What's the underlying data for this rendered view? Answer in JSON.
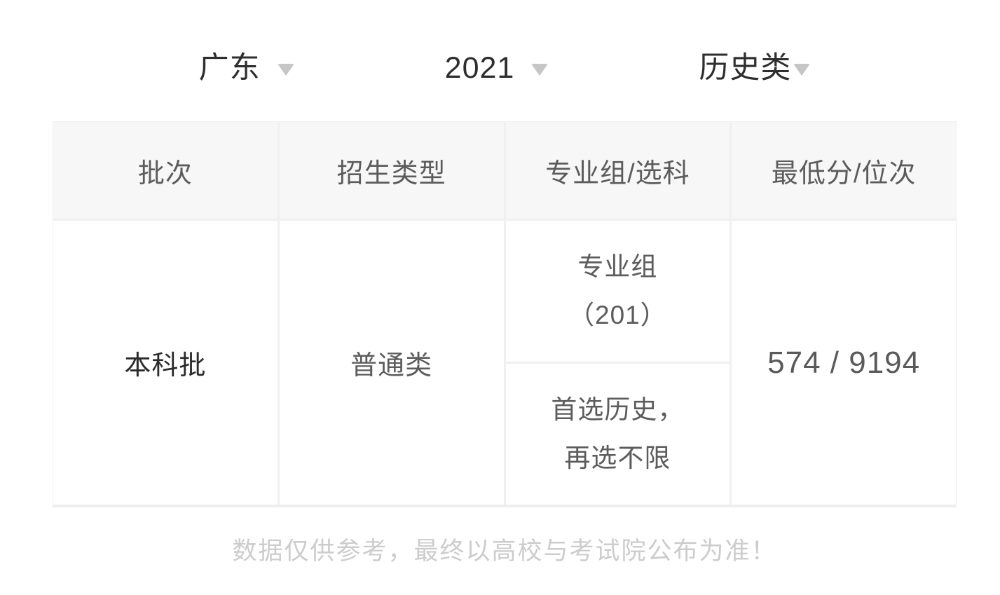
{
  "selectors": {
    "province": {
      "label": "广东"
    },
    "year": {
      "label": "2021"
    },
    "category": {
      "label": "历史类"
    }
  },
  "table": {
    "headers": [
      "批次",
      "招生类型",
      "专业组/选科",
      "最低分/位次"
    ],
    "rows": [
      {
        "batch": "本科批",
        "admission_type": "普通类",
        "major_group_lines": [
          "专业组",
          "（201）"
        ],
        "subject_lines": [
          "首选历史，",
          "再选不限"
        ],
        "min_score_rank": "574 / 9194"
      }
    ]
  },
  "footer": {
    "disclaimer": "数据仅供参考，最终以高校与考试院公布为准！"
  },
  "colors": {
    "header_bg": "#f7f7f7",
    "grid_line": "#f0f0f0",
    "primary_text": "#2b2b2b",
    "secondary_text": "#5c5c5c",
    "muted_text": "#cccccc",
    "arrow": "#c6c6c6"
  }
}
